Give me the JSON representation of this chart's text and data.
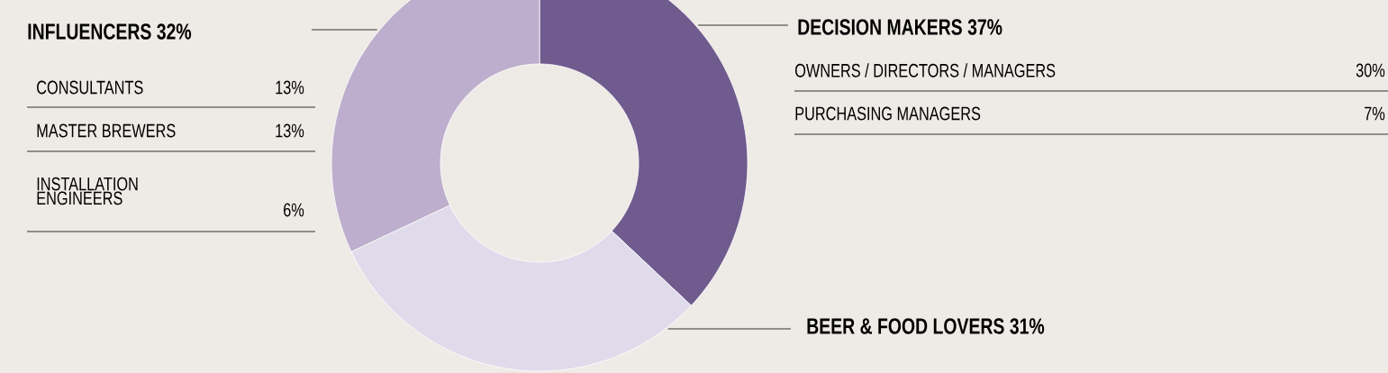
{
  "chart_data": {
    "type": "donut",
    "categories": [
      "DECISION MAKERS",
      "BEER & FOOD LOVERS",
      "INFLUENCERS"
    ],
    "values": [
      37,
      31,
      32
    ],
    "colors": [
      "#6f5b8e",
      "#dfdbea",
      "#bcaecc"
    ],
    "value_labels": [
      "37%",
      "31%",
      "32%"
    ],
    "annotations": [
      "CONSULTANTS",
      "13%",
      "MASTER BREWERS",
      "13%",
      "INSTALLATION ENGINEERS",
      "6%",
      "OWNERS / DIRECTORS / MANAGERS",
      "30%",
      "PURCHASING MANAGERS",
      "7%"
    ]
  }
}
